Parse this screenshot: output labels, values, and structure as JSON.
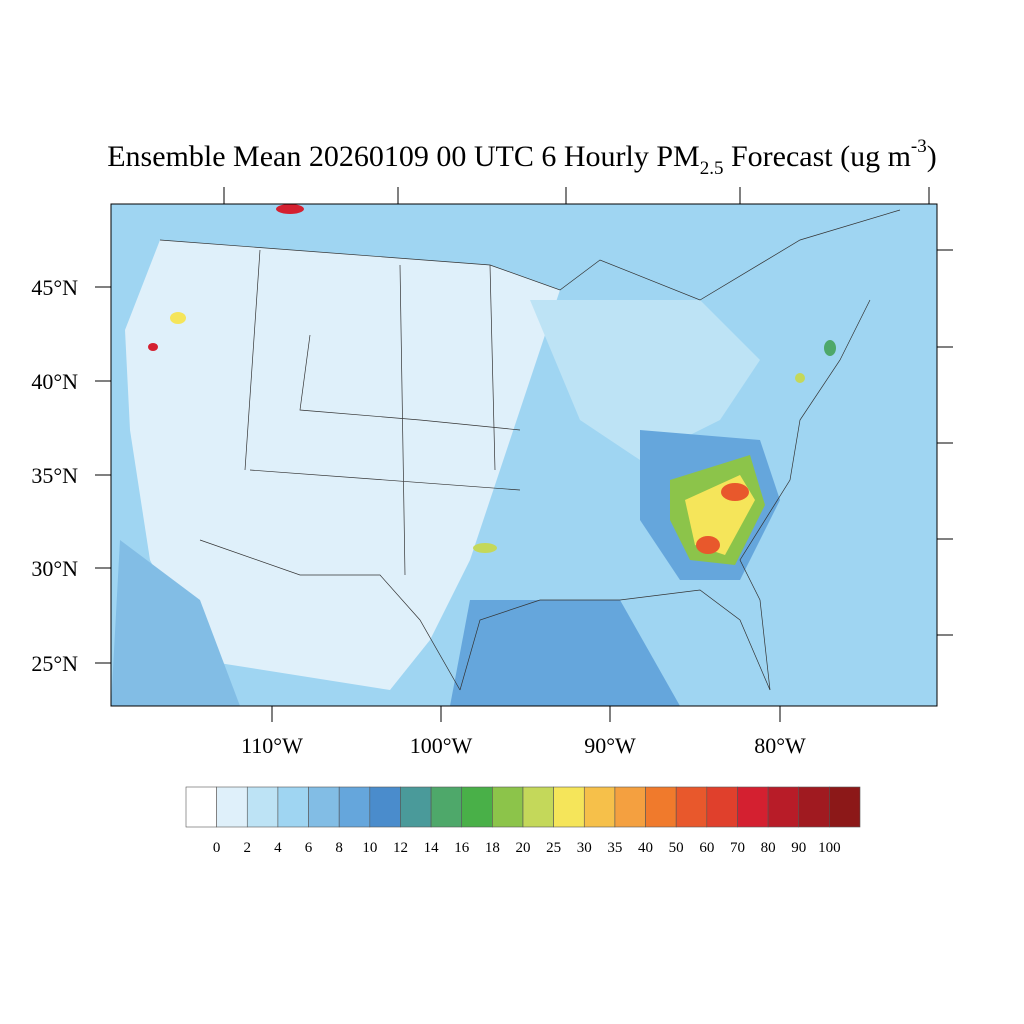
{
  "title": {
    "text": "Ensemble Mean 20260109 00 UTC 6 Hourly PM",
    "subscript": "2.5",
    "text2": " Forecast (ug m",
    "superscript": "-3",
    "text3": ")"
  },
  "lat_labels": [
    "45°N",
    "40°N",
    "35°N",
    "30°N",
    "25°N"
  ],
  "lon_labels": [
    "110°W",
    "100°W",
    "90°W",
    "80°W"
  ],
  "colorbar": {
    "labels": [
      0,
      2,
      4,
      6,
      8,
      10,
      12,
      14,
      16,
      18,
      20,
      25,
      30,
      35,
      40,
      50,
      60,
      70,
      80,
      90,
      100
    ],
    "colors": [
      "#ffffff",
      "#dff0fa",
      "#bde3f5",
      "#9fd5f2",
      "#82bde5",
      "#65a6dc",
      "#4a8ccc",
      "#4a9a9a",
      "#4ea86a",
      "#49b048",
      "#8cc44a",
      "#c4d85a",
      "#f5e55a",
      "#f6c04a",
      "#f4a040",
      "#f07a2c",
      "#e8582c",
      "#e0402c",
      "#d42030",
      "#b81c28",
      "#a01a20",
      "#8c1818"
    ]
  }
}
